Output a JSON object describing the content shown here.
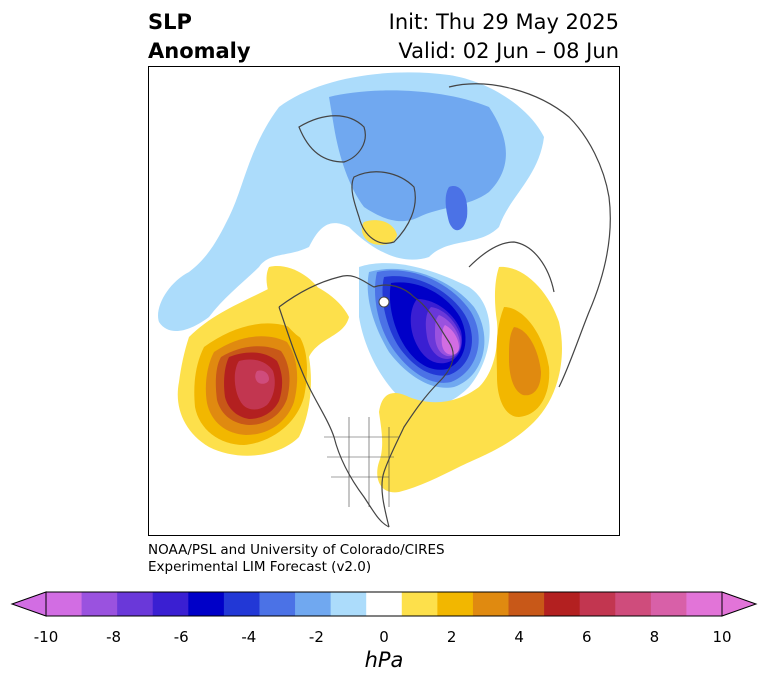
{
  "title": {
    "left_line1": "SLP",
    "left_line2": "Anomaly",
    "right_line1": "Init: Thu 29 May 2025",
    "right_line2": "Valid: 02 Jun – 08 Jun"
  },
  "credit": {
    "line1": "NOAA/PSL and University of Colorado/CIRES",
    "line2": "Experimental LIM Forecast (v2.0)"
  },
  "colorbar": {
    "unit": "hPa",
    "ticks": [
      "-10",
      "-8",
      "-6",
      "-4",
      "-2",
      "0",
      "2",
      "4",
      "6",
      "8",
      "10"
    ],
    "colors": [
      "#d26de3",
      "#9a52df",
      "#6a38d9",
      "#3a1fd2",
      "#0000c8",
      "#2238d6",
      "#4b72e6",
      "#70a8f0",
      "#acdcfb",
      "#ffffff",
      "#fde04b",
      "#f2b700",
      "#e08a10",
      "#c85818",
      "#b32020",
      "#c23650",
      "#cf4c7c",
      "#d860a8",
      "#e274d8"
    ],
    "min_color": "#d26de3",
    "max_color": "#e274d8"
  },
  "map_colors": {
    "neg_1": "#acdcfb",
    "neg_2": "#70a8f0",
    "neg_3": "#4b72e6",
    "neg_4": "#2238d6",
    "neg_5": "#0000c8",
    "neg_6": "#3a1fd2",
    "neg_7": "#6a38d9",
    "neg_8": "#9a52df",
    "neg_9": "#d26de3",
    "pos_1": "#fde04b",
    "pos_2": "#f2b700",
    "pos_3": "#e08a10",
    "pos_4": "#c85818",
    "pos_5": "#b32020",
    "pos_6": "#c23650",
    "pos_7": "#cf4c7c",
    "coast": "#444444"
  }
}
